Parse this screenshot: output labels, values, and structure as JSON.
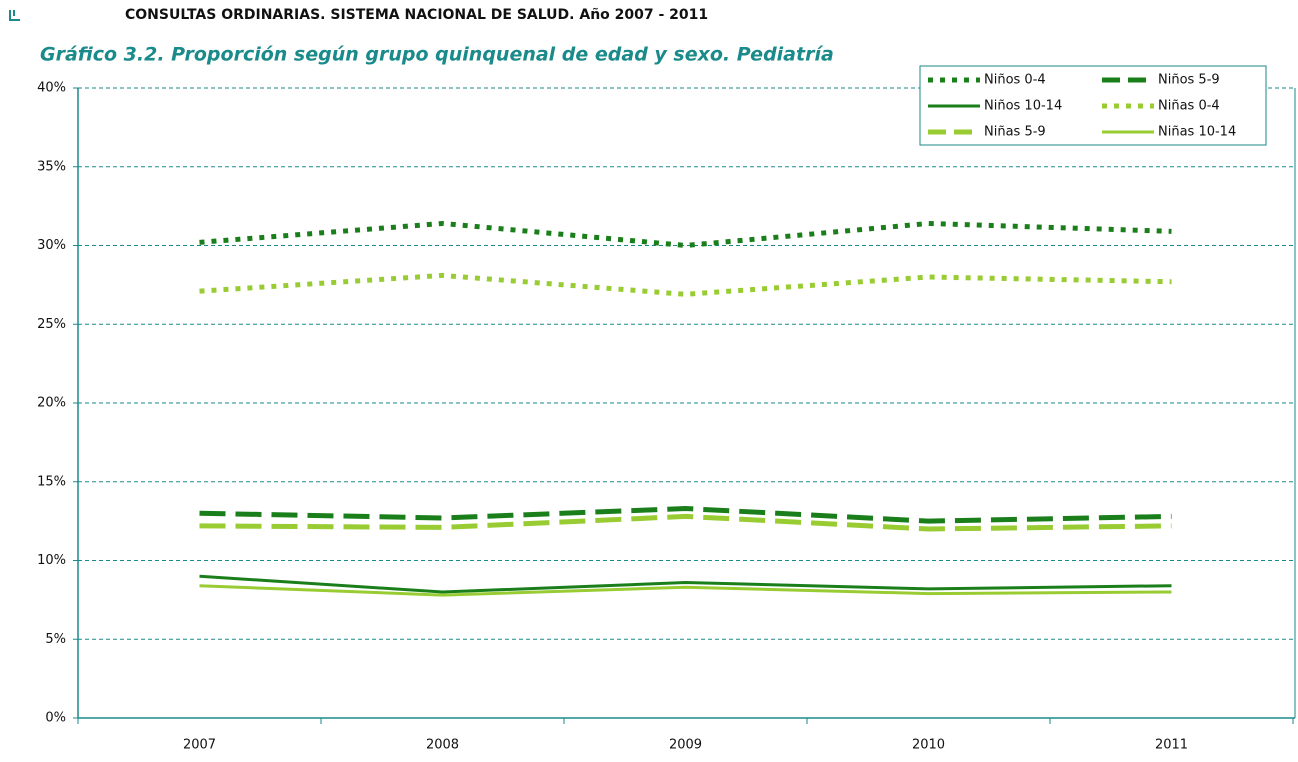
{
  "header": "CONSULTAS ORDINARIAS. SISTEMA NACIONAL DE SALUD. Año 2007 - 2011",
  "chart_data": {
    "type": "line",
    "title": "Gráfico 3.2. Proporción según grupo quinquenal de edad y sexo. Pediatría",
    "categories": [
      "2007",
      "2008",
      "2009",
      "2010",
      "2011"
    ],
    "series": [
      {
        "name": "Niños 0-4",
        "color": "#1a7f1a",
        "dash": "dotted",
        "values": [
          30.2,
          31.4,
          30.0,
          31.4,
          30.9
        ]
      },
      {
        "name": "Niños 5-9",
        "color": "#1a7f1a",
        "dash": "dashed",
        "values": [
          13.0,
          12.7,
          13.3,
          12.5,
          12.8
        ]
      },
      {
        "name": "Niños 10-14",
        "color": "#1a7f1a",
        "dash": "solid",
        "values": [
          9.0,
          8.0,
          8.6,
          8.2,
          8.4
        ]
      },
      {
        "name": "Niñas 0-4",
        "color": "#99cc33",
        "dash": "dotted",
        "values": [
          27.1,
          28.1,
          26.9,
          28.0,
          27.7
        ]
      },
      {
        "name": "Niñas 5-9",
        "color": "#99cc33",
        "dash": "dashed",
        "values": [
          12.2,
          12.1,
          12.8,
          12.0,
          12.2
        ]
      },
      {
        "name": "Niñas 10-14",
        "color": "#99cc33",
        "dash": "solid",
        "values": [
          8.4,
          7.8,
          8.3,
          7.9,
          8.0
        ]
      }
    ],
    "ylim": [
      0,
      40
    ],
    "yticks": [
      {
        "value": 0,
        "label": "0%"
      },
      {
        "value": 5,
        "label": "5%"
      },
      {
        "value": 10,
        "label": "10%"
      },
      {
        "value": 15,
        "label": "15%"
      },
      {
        "value": 20,
        "label": "20%"
      },
      {
        "value": 25,
        "label": "25%"
      },
      {
        "value": 30,
        "label": "30%"
      },
      {
        "value": 35,
        "label": "35%"
      },
      {
        "value": 40,
        "label": "40%"
      }
    ],
    "grid": true,
    "legend": "top-right"
  }
}
